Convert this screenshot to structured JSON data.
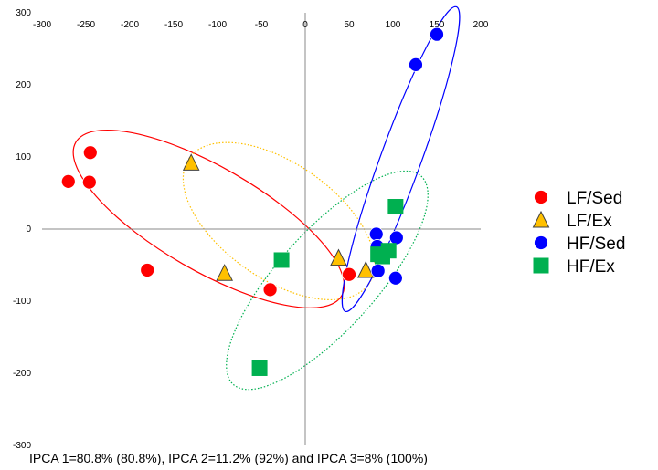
{
  "chart_data": {
    "type": "scatter",
    "title": "",
    "xlabel": "",
    "ylabel": "",
    "caption": "IPCA 1=80.8% (80.8%), IPCA 2=11.2% (92%) and IPCA 3=8% (100%)",
    "xlim": [
      -300,
      200
    ],
    "ylim": [
      -300,
      300
    ],
    "x_ticks": [
      "-300",
      "-250",
      "-200",
      "-150",
      "-100",
      "-50",
      "0",
      "50",
      "100",
      "150",
      "200"
    ],
    "y_ticks": [
      "300",
      "200",
      "100",
      "0",
      "-100",
      "-200",
      "-300"
    ],
    "grid": false,
    "legend_position": "right",
    "series": [
      {
        "name": "LF/Sed",
        "marker": "circle",
        "color": "#ff0000",
        "points": [
          {
            "x": -270,
            "y": 66
          },
          {
            "x": -245,
            "y": 106
          },
          {
            "x": -246,
            "y": 65
          },
          {
            "x": -180,
            "y": -57
          },
          {
            "x": -40,
            "y": -84
          },
          {
            "x": 50,
            "y": -63
          }
        ]
      },
      {
        "name": "LF/Ex",
        "marker": "triangle",
        "color": "#ffc000",
        "points": [
          {
            "x": -130,
            "y": 92
          },
          {
            "x": -92,
            "y": -61
          },
          {
            "x": 38,
            "y": -40
          },
          {
            "x": 69,
            "y": -57
          }
        ]
      },
      {
        "name": "HF/Sed",
        "marker": "circle",
        "color": "#0000ff",
        "points": [
          {
            "x": 150,
            "y": 270
          },
          {
            "x": 126,
            "y": 228
          },
          {
            "x": 81,
            "y": -7
          },
          {
            "x": 104,
            "y": -12
          },
          {
            "x": 82,
            "y": -24
          },
          {
            "x": 93,
            "y": -31
          },
          {
            "x": 83,
            "y": -58
          },
          {
            "x": 103,
            "y": -68
          }
        ]
      },
      {
        "name": "HF/Ex",
        "marker": "square",
        "color": "#00b050",
        "points": [
          {
            "x": 103,
            "y": 31
          },
          {
            "x": -27,
            "y": -43
          },
          {
            "x": 95,
            "y": -30
          },
          {
            "x": 88,
            "y": -38
          },
          {
            "x": 83,
            "y": -35
          },
          {
            "x": -52,
            "y": -193
          }
        ]
      }
    ],
    "ellipses": [
      {
        "group": "LF/Sed",
        "color": "#ff0000",
        "style": "solid",
        "cx": -110,
        "cy": 14,
        "rx": 175,
        "ry": 72,
        "angle": 30
      },
      {
        "group": "LF/Ex",
        "color": "#ffc000",
        "style": "dotted",
        "cx": -30,
        "cy": 11,
        "rx": 125,
        "ry": 80,
        "angle": 35
      },
      {
        "group": "HF/Ex",
        "color": "#00b050",
        "style": "dotted",
        "cx": 25,
        "cy": -71,
        "rx": 160,
        "ry": 68,
        "angle": -48
      },
      {
        "group": "HF/Sed",
        "color": "#0000ff",
        "style": "solid",
        "cx": 109,
        "cy": 97,
        "rx": 185,
        "ry": 28,
        "angle": -70
      }
    ]
  }
}
